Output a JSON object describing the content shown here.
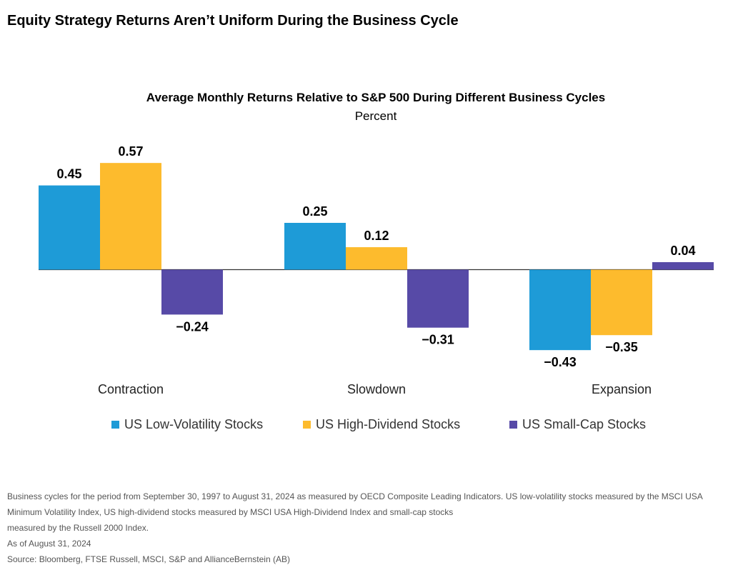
{
  "header": {
    "title": "Equity Strategy Returns Aren’t Uniform During the Business Cycle"
  },
  "chart_data": {
    "type": "bar",
    "title": "Average Monthly Returns Relative to S&P 500 During Different Business Cycles",
    "subtitle": "Percent",
    "categories": [
      "Contraction",
      "Slowdown",
      "Expansion"
    ],
    "series": [
      {
        "name": "US Low-Volatility Stocks",
        "color": "#1e9bd7",
        "values": [
          0.45,
          0.25,
          -0.43
        ],
        "labels": [
          "0.45",
          "0.25",
          "−0.43"
        ]
      },
      {
        "name": "US High-Dividend Stocks",
        "color": "#fdbb2d",
        "values": [
          0.57,
          0.12,
          -0.35
        ],
        "labels": [
          "0.57",
          "0.12",
          "−0.35"
        ]
      },
      {
        "name": "US Small-Cap Stocks",
        "color": "#574aa7",
        "values": [
          -0.24,
          -0.31,
          0.04
        ],
        "labels": [
          "−0.24",
          "−0.31",
          "0.04"
        ]
      }
    ],
    "legend_position": "bottom",
    "grid": false
  },
  "notes": {
    "line1": "Business cycles for the period from September 30, 1997 to August 31, 2024 as measured by OECD Composite Leading Indicators. US low-volatility stocks measured by the MSCI USA Minimum Volatility Index, US high-dividend stocks measured by MSCI USA High-Dividend Index and small-cap stocks",
    "line2": "measured by the Russell 2000 Index.",
    "as_of": "As of August 31, 2024",
    "source": "Source: Bloomberg, FTSE Russell, MSCI, S&P and AllianceBernstein (AB)"
  }
}
